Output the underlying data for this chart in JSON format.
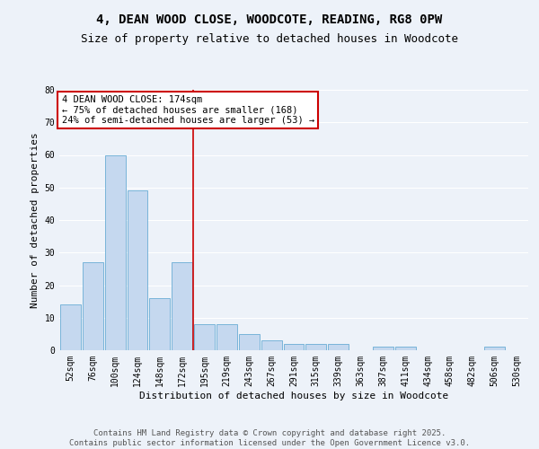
{
  "title_line1": "4, DEAN WOOD CLOSE, WOODCOTE, READING, RG8 0PW",
  "title_line2": "Size of property relative to detached houses in Woodcote",
  "xlabel": "Distribution of detached houses by size in Woodcote",
  "ylabel": "Number of detached properties",
  "categories": [
    "52sqm",
    "76sqm",
    "100sqm",
    "124sqm",
    "148sqm",
    "172sqm",
    "195sqm",
    "219sqm",
    "243sqm",
    "267sqm",
    "291sqm",
    "315sqm",
    "339sqm",
    "363sqm",
    "387sqm",
    "411sqm",
    "434sqm",
    "458sqm",
    "482sqm",
    "506sqm",
    "530sqm"
  ],
  "values": [
    14,
    27,
    60,
    49,
    16,
    27,
    8,
    8,
    5,
    3,
    2,
    2,
    2,
    0,
    1,
    1,
    0,
    0,
    0,
    1,
    0
  ],
  "bar_color": "#c5d8ef",
  "bar_edgecolor": "#6aadd5",
  "vline_x": 5.5,
  "vline_color": "#cc0000",
  "annotation_text": "4 DEAN WOOD CLOSE: 174sqm\n← 75% of detached houses are smaller (168)\n24% of semi-detached houses are larger (53) →",
  "annotation_box_color": "#ffffff",
  "annotation_box_edgecolor": "#cc0000",
  "ylim": [
    0,
    80
  ],
  "yticks": [
    0,
    10,
    20,
    30,
    40,
    50,
    60,
    70,
    80
  ],
  "bg_color": "#edf2f9",
  "plot_bg_color": "#edf2f9",
  "footer_line1": "Contains HM Land Registry data © Crown copyright and database right 2025.",
  "footer_line2": "Contains public sector information licensed under the Open Government Licence v3.0.",
  "grid_color": "#ffffff",
  "title_fontsize": 10,
  "subtitle_fontsize": 9,
  "axis_label_fontsize": 8,
  "tick_fontsize": 7,
  "annotation_fontsize": 7.5,
  "footer_fontsize": 6.5
}
